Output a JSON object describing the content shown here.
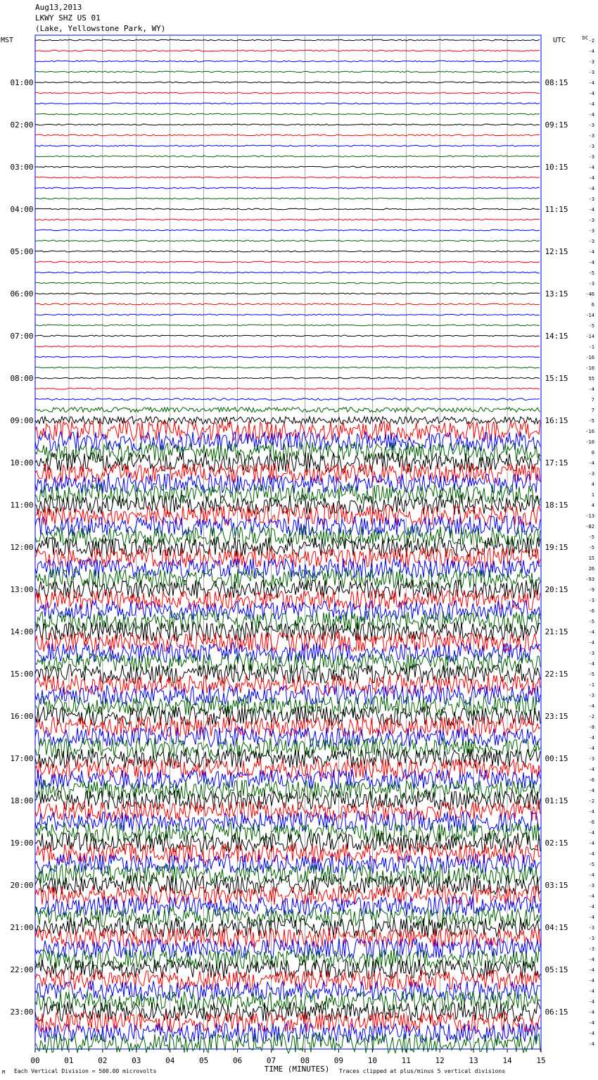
{
  "header": {
    "date": "Aug13,2013",
    "station": "LKWY SHZ US 01",
    "location": "(Lake, Yellowstone Park, WY)"
  },
  "left_label": "MST",
  "right_label": "UTC",
  "offset_header": "DC",
  "footer": {
    "left_mark": "M",
    "division_note": "Each Vertical Division =  500.00 microvolts",
    "xlabel": "TIME (MINUTES)",
    "clip_note": "Traces clipped at plus/minus 5 vertical divisions"
  },
  "colors": {
    "trace_cycle": [
      "#000000",
      "#ff0000",
      "#0000ff",
      "#006400"
    ],
    "grid": "#7f7f7f",
    "axis": "#0000ff"
  },
  "chart_data": {
    "type": "helicorder",
    "title": "LKWY SHZ US 01",
    "xlabel": "TIME (MINUTES)",
    "xlim": [
      0,
      15
    ],
    "x_ticks": [
      "00",
      "01",
      "02",
      "03",
      "04",
      "05",
      "06",
      "07",
      "08",
      "09",
      "10",
      "11",
      "12",
      "13",
      "14",
      "15"
    ],
    "rows_count": 96,
    "row_minutes": 15,
    "left_hour_labels": [
      "01:00",
      "02:00",
      "03:00",
      "04:00",
      "05:00",
      "06:00",
      "07:00",
      "08:00",
      "09:00",
      "10:00",
      "11:00",
      "12:00",
      "13:00",
      "14:00",
      "15:00",
      "16:00",
      "17:00",
      "18:00",
      "19:00",
      "20:00",
      "21:00",
      "22:00",
      "23:00"
    ],
    "right_hour_labels": [
      "08:15",
      "09:15",
      "10:15",
      "11:15",
      "12:15",
      "13:15",
      "14:15",
      "15:15",
      "16:15",
      "17:15",
      "18:15",
      "19:15",
      "20:15",
      "21:15",
      "22:15",
      "23:15",
      "00:15",
      "01:15",
      "02:15",
      "03:15",
      "04:15",
      "05:15",
      "06:15"
    ],
    "right_offsets": [
      "-2",
      "-4",
      "-3",
      "-3",
      "-4",
      "-4",
      "-4",
      "-4",
      "-3",
      "-3",
      "-3",
      "-3",
      "-4",
      "-4",
      "-4",
      "-3",
      "-4",
      "-3",
      "-3",
      "-3",
      "-4",
      "-4",
      "-5",
      "-3",
      "-46",
      "6",
      "-14",
      "-5",
      "-14",
      "-1",
      "-16",
      "-10",
      "55",
      "-4",
      "7",
      "7",
      "-5",
      "-16",
      "-10",
      "0",
      "-4",
      "-3",
      "4",
      "1",
      "4",
      "-13",
      "-82",
      "-5",
      "-5",
      "15",
      "26",
      "-93",
      "-9",
      "-3",
      "-6",
      "-5",
      "-4",
      "-4",
      "-3",
      "-4",
      "-5",
      "-1",
      "-3",
      "-4",
      "-2",
      "-8",
      "-4",
      "-4",
      "-3",
      "-4",
      "-6",
      "-4",
      "-2",
      "-4",
      "-6",
      "-4",
      "-4",
      "-4",
      "-5",
      "-4",
      "-3",
      "-4",
      "-4",
      "-4",
      "-3",
      "-3",
      "-3",
      "-4",
      "-4",
      "-4",
      "-4",
      "-4",
      "-4",
      "-4",
      "-4",
      "-4"
    ],
    "activity_level_per_row": [
      1,
      1,
      1,
      1,
      1,
      1,
      1,
      1,
      1,
      1,
      1,
      1,
      1,
      1,
      1,
      1,
      1,
      1,
      1,
      1,
      1,
      1,
      1,
      1,
      1,
      1,
      1,
      1,
      1,
      1,
      1,
      1,
      1,
      1,
      1.5,
      4,
      6,
      16,
      16,
      16,
      16,
      16,
      16,
      16,
      16,
      16,
      16,
      16,
      16,
      16,
      16,
      16,
      16,
      16,
      16,
      16,
      16,
      16,
      16,
      16,
      16,
      16,
      16,
      16,
      16,
      16,
      16,
      16,
      16,
      16,
      16,
      16,
      16,
      16,
      16,
      16,
      16,
      16,
      16,
      16,
      16,
      16,
      16,
      16,
      16,
      16,
      16,
      16,
      16,
      16,
      16,
      16,
      16,
      16,
      16,
      16
    ],
    "grid": true
  }
}
